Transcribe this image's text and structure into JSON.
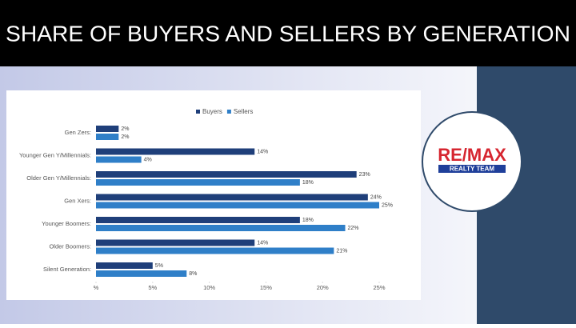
{
  "header": {
    "title": "SHARE OF BUYERS AND SELLERS BY GENERATION"
  },
  "logo": {
    "brand": "RE/MAX",
    "tagline": "REALTY TEAM"
  },
  "chart_data": {
    "type": "bar",
    "orientation": "horizontal",
    "categories": [
      "Gen Zers:",
      "Younger Gen Y/Millennials:",
      "Older Gen Y/Millennials:",
      "Gen Xers:",
      "Younger Boomers:",
      "Older Boomers:",
      "Silent Generation:"
    ],
    "series": [
      {
        "name": "Buyers",
        "color": "#1f3f7a",
        "values": [
          2,
          14,
          23,
          24,
          18,
          14,
          5
        ],
        "value_labels": [
          "2%",
          "14%",
          "23%",
          "24%",
          "18%",
          "14%",
          "5%"
        ]
      },
      {
        "name": "Sellers",
        "color": "#2f7fc8",
        "values": [
          2,
          4,
          18,
          25,
          22,
          21,
          8
        ],
        "value_labels": [
          "2%",
          "4%",
          "18%",
          "25%",
          "22%",
          "21%",
          "8%"
        ]
      }
    ],
    "xlim": [
      0,
      25
    ],
    "xticks": [
      {
        "value": 0,
        "label": "%"
      },
      {
        "value": 5,
        "label": "5%"
      },
      {
        "value": 10,
        "label": "10%"
      },
      {
        "value": 15,
        "label": "15%"
      },
      {
        "value": 20,
        "label": "20%"
      },
      {
        "value": 25,
        "label": "25%"
      }
    ],
    "legend": "top"
  }
}
